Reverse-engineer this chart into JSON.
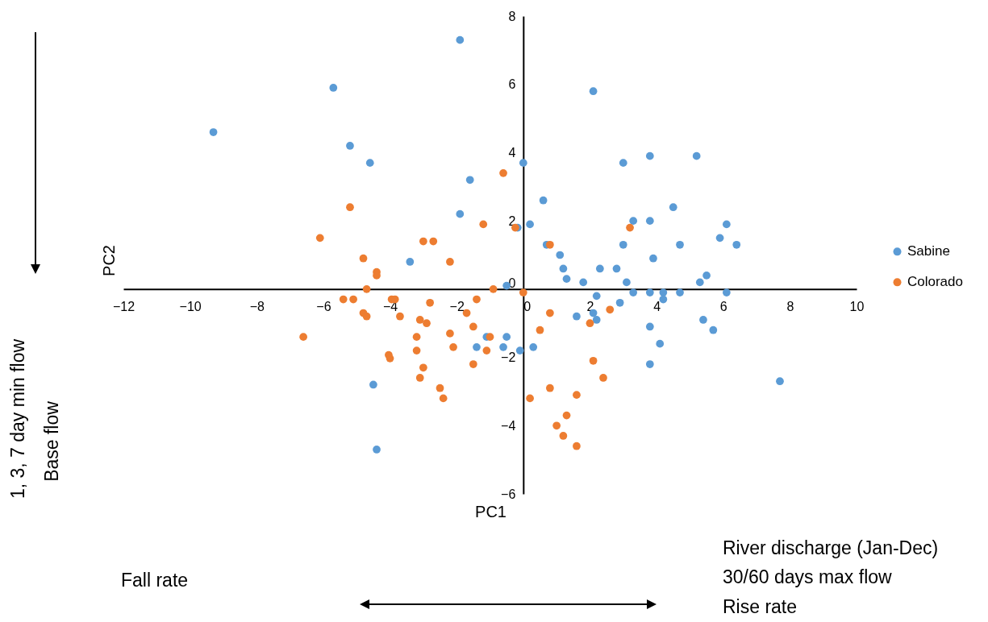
{
  "chart_data": {
    "type": "scatter",
    "xlabel": "PC1",
    "ylabel": "PC2",
    "xlim": [
      -12,
      10
    ],
    "ylim": [
      -6,
      8
    ],
    "xticks": [
      -12,
      -10,
      -8,
      -6,
      -4,
      -2,
      0,
      2,
      4,
      6,
      8,
      10
    ],
    "yticks": [
      -6,
      -4,
      -2,
      0,
      2,
      4,
      6,
      8
    ],
    "grid": false,
    "legend": "right",
    "marker": "circle",
    "annotations": [
      "1, 3, 7 day min flow",
      "Base flow",
      "Fall rate",
      "River discharge (Jan-Dec)",
      "30/60 days max flow",
      "Rise rate"
    ],
    "series": [
      {
        "name": "Sabine",
        "color": "#5b9bd5",
        "x": [
          -9.3,
          -5.7,
          -1.9,
          -5.2,
          -4.6,
          -1.6,
          0,
          -1.9,
          -3.4,
          2.1,
          -0.17,
          0.2,
          0.6,
          3.0,
          3.8,
          5.2,
          4.5,
          3.3,
          3.8,
          6.1,
          5.9,
          6.4,
          3.0,
          4.7,
          3.9,
          0.7,
          1.1,
          1.2,
          1.3,
          1.8,
          2.3,
          2.8,
          5.5,
          5.3,
          3.1,
          3.3,
          3.8,
          4.2,
          4.7,
          6.1,
          4.2,
          2.2,
          2.9,
          1.6,
          2.1,
          2.2,
          3.8,
          5.4,
          5.7,
          4.1,
          3.8,
          7.7,
          -0.1,
          0.3,
          -0.5,
          -4.5,
          -4.4,
          -1.1,
          -1.4,
          -0.6,
          -0.5
        ],
        "values": [
          4.6,
          5.9,
          7.3,
          4.2,
          3.7,
          3.2,
          3.7,
          2.2,
          0.8,
          5.8,
          1.8,
          1.9,
          2.6,
          3.7,
          3.9,
          3.9,
          2.4,
          2.0,
          2.0,
          1.9,
          1.5,
          1.3,
          1.3,
          1.3,
          0.9,
          1.3,
          1.0,
          0.6,
          0.3,
          0.2,
          0.6,
          0.6,
          0.4,
          0.2,
          0.2,
          -0.1,
          -0.1,
          -0.1,
          -0.1,
          -0.1,
          -0.3,
          -0.2,
          -0.4,
          -0.8,
          -0.7,
          -0.9,
          -1.1,
          -0.9,
          -1.2,
          -1.6,
          -2.2,
          -2.7,
          -1.8,
          -1.7,
          0.1,
          -2.8,
          -4.7,
          -1.4,
          -1.7,
          -1.7,
          -1.4
        ]
      },
      {
        "name": "Colorado",
        "color": "#ed7d31",
        "x": [
          -0.6,
          -5.2,
          -6.1,
          -1.2,
          -0.24,
          -3.0,
          -2.7,
          -4.8,
          -2.2,
          -4.4,
          -4.4,
          -4.7,
          -0.9,
          0.8,
          3.2,
          0,
          0.8,
          2.6,
          2.0,
          0.5,
          2.1,
          2.4,
          0.8,
          1.6,
          0.2,
          1.3,
          1.0,
          1.2,
          1.6,
          -5.4,
          -5.1,
          -3.95,
          -3.85,
          -3.7,
          -4.8,
          -4.7,
          -2.8,
          -3.1,
          -2.9,
          -3.2,
          -3.2,
          -6.6,
          -4.04,
          -4.0,
          -3.0,
          -3.1,
          -2.5,
          -2.4,
          -1.4,
          -1.7,
          -1.5,
          -2.2,
          -2.1,
          -1.0,
          -1.1,
          -1.5
        ],
        "values": [
          3.4,
          2.4,
          1.5,
          1.9,
          1.8,
          1.4,
          1.4,
          0.9,
          0.8,
          0.5,
          0.4,
          0.0,
          0.0,
          1.3,
          1.8,
          -0.1,
          -0.7,
          -0.6,
          -1.0,
          -1.2,
          -2.1,
          -2.6,
          -2.9,
          -3.1,
          -3.2,
          -3.7,
          -4.0,
          -4.3,
          -4.6,
          -0.3,
          -0.3,
          -0.3,
          -0.3,
          -0.8,
          -0.7,
          -0.8,
          -0.4,
          -0.9,
          -1.0,
          -1.4,
          -1.8,
          -1.4,
          -1.93,
          -2.03,
          -2.3,
          -2.6,
          -2.9,
          -3.2,
          -0.3,
          -0.7,
          -1.1,
          -1.3,
          -1.7,
          -1.4,
          -1.8,
          -2.2
        ]
      }
    ]
  }
}
